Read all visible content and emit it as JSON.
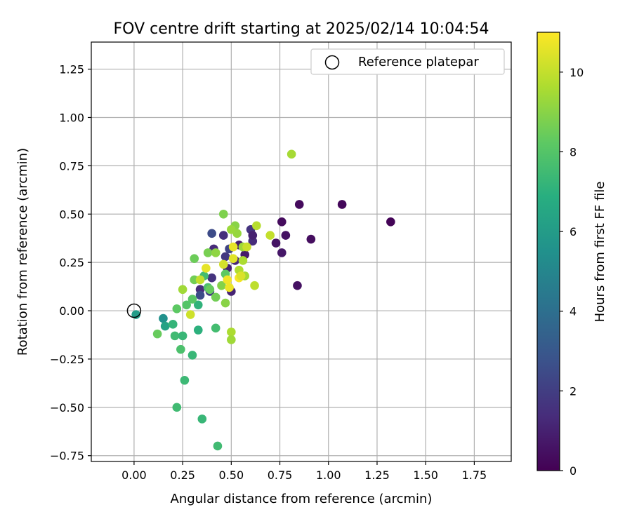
{
  "chart_data": {
    "type": "scatter",
    "title": "FOV centre drift starting at 2025/02/14 10:04:54",
    "xlabel": "Angular distance from reference (arcmin)",
    "ylabel": "Rotation from reference (arcmin)",
    "xlim": [
      -0.22,
      1.94
    ],
    "ylim": [
      -0.78,
      1.39
    ],
    "xticks": [
      "0.00",
      "0.25",
      "0.50",
      "0.75",
      "1.00",
      "1.25",
      "1.50",
      "1.75"
    ],
    "yticks": [
      "−0.75",
      "−0.50",
      "−0.25",
      "0.00",
      "0.25",
      "0.50",
      "0.75",
      "1.00",
      "1.25"
    ],
    "grid": true,
    "legend": {
      "placement": "top-right",
      "label": "Reference platepar"
    },
    "reference_point": [
      0,
      0
    ],
    "colorbar": {
      "label": "Hours from first FF file",
      "range": [
        0,
        11
      ],
      "ticks": [
        "0",
        "2",
        "4",
        "6",
        "8",
        "10"
      ],
      "colormap": "viridis"
    },
    "points": [
      {
        "x": 1.32,
        "y": 0.46,
        "h": 0.1
      },
      {
        "x": 1.07,
        "y": 0.55,
        "h": 0.2
      },
      {
        "x": 0.85,
        "y": 0.55,
        "h": 0.3
      },
      {
        "x": 0.91,
        "y": 0.37,
        "h": 0.4
      },
      {
        "x": 0.84,
        "y": 0.13,
        "h": 0.5
      },
      {
        "x": 0.76,
        "y": 0.46,
        "h": 0.3
      },
      {
        "x": 0.78,
        "y": 0.39,
        "h": 0.5
      },
      {
        "x": 0.73,
        "y": 0.35,
        "h": 0.6
      },
      {
        "x": 0.76,
        "y": 0.3,
        "h": 0.7
      },
      {
        "x": 0.6,
        "y": 0.42,
        "h": 1.6
      },
      {
        "x": 0.61,
        "y": 0.36,
        "h": 1.4
      },
      {
        "x": 0.61,
        "y": 0.39,
        "h": 1.0
      },
      {
        "x": 0.57,
        "y": 0.29,
        "h": 0.8
      },
      {
        "x": 0.54,
        "y": 0.34,
        "h": 0.9
      },
      {
        "x": 0.48,
        "y": 0.22,
        "h": 1.0
      },
      {
        "x": 0.5,
        "y": 0.1,
        "h": 1.1
      },
      {
        "x": 0.52,
        "y": 0.26,
        "h": 1.2
      },
      {
        "x": 0.46,
        "y": 0.39,
        "h": 1.5
      },
      {
        "x": 0.4,
        "y": 0.4,
        "h": 2.5
      },
      {
        "x": 0.41,
        "y": 0.32,
        "h": 1.3
      },
      {
        "x": 0.4,
        "y": 0.17,
        "h": 1.6
      },
      {
        "x": 0.34,
        "y": 0.11,
        "h": 1.4
      },
      {
        "x": 0.39,
        "y": 0.1,
        "h": 2.0
      },
      {
        "x": 0.34,
        "y": 0.08,
        "h": 2.5
      },
      {
        "x": 0.47,
        "y": 0.28,
        "h": 1.8
      },
      {
        "x": 0.49,
        "y": 0.32,
        "h": 2.2
      },
      {
        "x": 0.01,
        "y": -0.02,
        "h": 6.0
      },
      {
        "x": 0.15,
        "y": -0.04,
        "h": 5.5
      },
      {
        "x": 0.16,
        "y": -0.08,
        "h": 6.3
      },
      {
        "x": 0.2,
        "y": -0.07,
        "h": 7.2
      },
      {
        "x": 0.21,
        "y": -0.13,
        "h": 7.5
      },
      {
        "x": 0.25,
        "y": -0.13,
        "h": 7.3
      },
      {
        "x": 0.24,
        "y": -0.2,
        "h": 7.8
      },
      {
        "x": 0.3,
        "y": -0.23,
        "h": 7.3
      },
      {
        "x": 0.26,
        "y": -0.36,
        "h": 7.4
      },
      {
        "x": 0.22,
        "y": -0.5,
        "h": 7.5
      },
      {
        "x": 0.35,
        "y": -0.56,
        "h": 7.3
      },
      {
        "x": 0.43,
        "y": -0.7,
        "h": 7.5
      },
      {
        "x": 0.33,
        "y": -0.1,
        "h": 7.0
      },
      {
        "x": 0.42,
        "y": -0.09,
        "h": 7.6
      },
      {
        "x": 0.33,
        "y": 0.03,
        "h": 7.1
      },
      {
        "x": 0.36,
        "y": 0.18,
        "h": 7.6
      },
      {
        "x": 0.38,
        "y": 0.12,
        "h": 7.8
      },
      {
        "x": 0.3,
        "y": 0.06,
        "h": 8.1
      },
      {
        "x": 0.27,
        "y": 0.03,
        "h": 8.0
      },
      {
        "x": 0.22,
        "y": 0.01,
        "h": 8.2
      },
      {
        "x": 0.12,
        "y": -0.12,
        "h": 8.4
      },
      {
        "x": 0.31,
        "y": 0.16,
        "h": 8.6
      },
      {
        "x": 0.31,
        "y": 0.27,
        "h": 8.5
      },
      {
        "x": 0.38,
        "y": 0.3,
        "h": 8.7
      },
      {
        "x": 0.39,
        "y": 0.11,
        "h": 8.4
      },
      {
        "x": 0.42,
        "y": 0.07,
        "h": 8.6
      },
      {
        "x": 0.45,
        "y": 0.13,
        "h": 8.9
      },
      {
        "x": 0.47,
        "y": 0.19,
        "h": 8.2
      },
      {
        "x": 0.47,
        "y": 0.04,
        "h": 9.0
      },
      {
        "x": 0.46,
        "y": 0.5,
        "h": 8.8
      },
      {
        "x": 0.42,
        "y": 0.3,
        "h": 9.1
      },
      {
        "x": 0.52,
        "y": 0.44,
        "h": 9.0
      },
      {
        "x": 0.53,
        "y": 0.4,
        "h": 9.2
      },
      {
        "x": 0.5,
        "y": 0.42,
        "h": 9.3
      },
      {
        "x": 0.56,
        "y": 0.33,
        "h": 9.4
      },
      {
        "x": 0.56,
        "y": 0.26,
        "h": 9.6
      },
      {
        "x": 0.57,
        "y": 0.18,
        "h": 9.5
      },
      {
        "x": 0.54,
        "y": 0.21,
        "h": 9.7
      },
      {
        "x": 0.5,
        "y": -0.11,
        "h": 9.6
      },
      {
        "x": 0.5,
        "y": -0.15,
        "h": 9.4
      },
      {
        "x": 0.63,
        "y": 0.44,
        "h": 9.8
      },
      {
        "x": 0.62,
        "y": 0.13,
        "h": 9.9
      },
      {
        "x": 0.7,
        "y": 0.39,
        "h": 10.0
      },
      {
        "x": 0.81,
        "y": 0.81,
        "h": 9.5
      },
      {
        "x": 0.25,
        "y": 0.11,
        "h": 9.4
      },
      {
        "x": 0.29,
        "y": -0.02,
        "h": 10.2
      },
      {
        "x": 0.34,
        "y": 0.16,
        "h": 10.0
      },
      {
        "x": 0.37,
        "y": 0.22,
        "h": 10.6
      },
      {
        "x": 0.46,
        "y": 0.24,
        "h": 10.3
      },
      {
        "x": 0.48,
        "y": 0.16,
        "h": 10.8
      },
      {
        "x": 0.49,
        "y": 0.12,
        "h": 10.7
      },
      {
        "x": 0.51,
        "y": 0.27,
        "h": 10.5
      },
      {
        "x": 0.51,
        "y": 0.33,
        "h": 10.6
      },
      {
        "x": 0.54,
        "y": 0.17,
        "h": 10.9
      },
      {
        "x": 0.58,
        "y": 0.33,
        "h": 10.1
      },
      {
        "x": 0.55,
        "y": 0.18,
        "h": 10.4
      }
    ]
  }
}
